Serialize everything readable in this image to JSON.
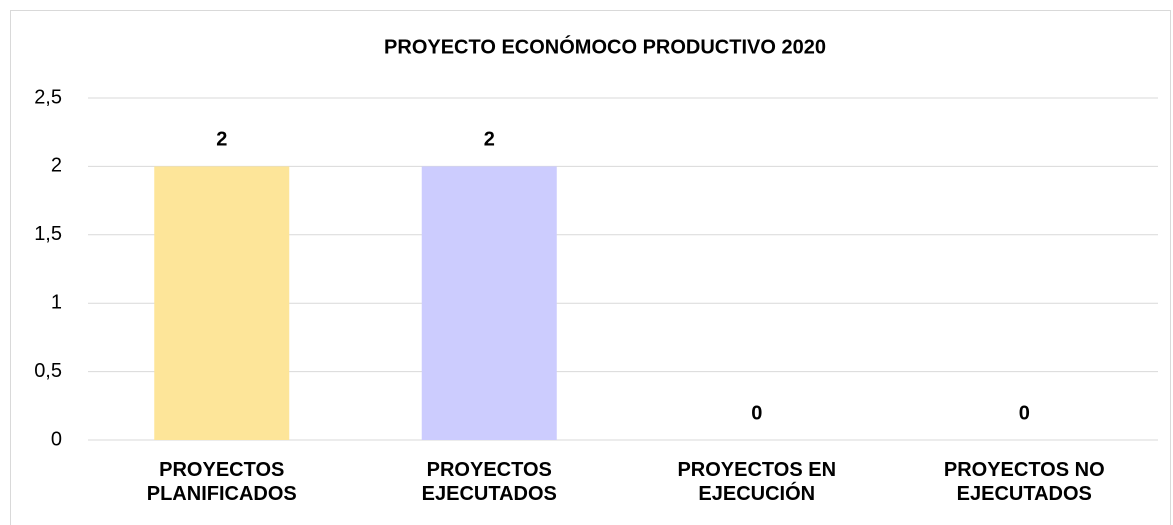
{
  "chart_data": {
    "type": "bar",
    "title": "PROYECTO ECONÓMOCO PRODUCTIVO 2020",
    "categories": [
      "PROYECTOS PLANIFICADOS",
      "PROYECTOS EJECUTADOS",
      "PROYECTOS EN EJECUCIÓN",
      "PROYECTOS NO EJECUTADOS"
    ],
    "values": [
      2,
      2,
      0,
      0
    ],
    "colors": [
      "#fde599",
      "#ccccfe",
      "#a9d18e",
      "#f4b183"
    ],
    "ylim": [
      0,
      2.5
    ],
    "yticks": [
      0,
      {
        "value": 0.5,
        "label": "0,5"
      },
      1,
      {
        "value": 1.5,
        "label": "1,5"
      },
      2,
      {
        "value": 2.5,
        "label": "2,5"
      }
    ],
    "grid": true
  }
}
